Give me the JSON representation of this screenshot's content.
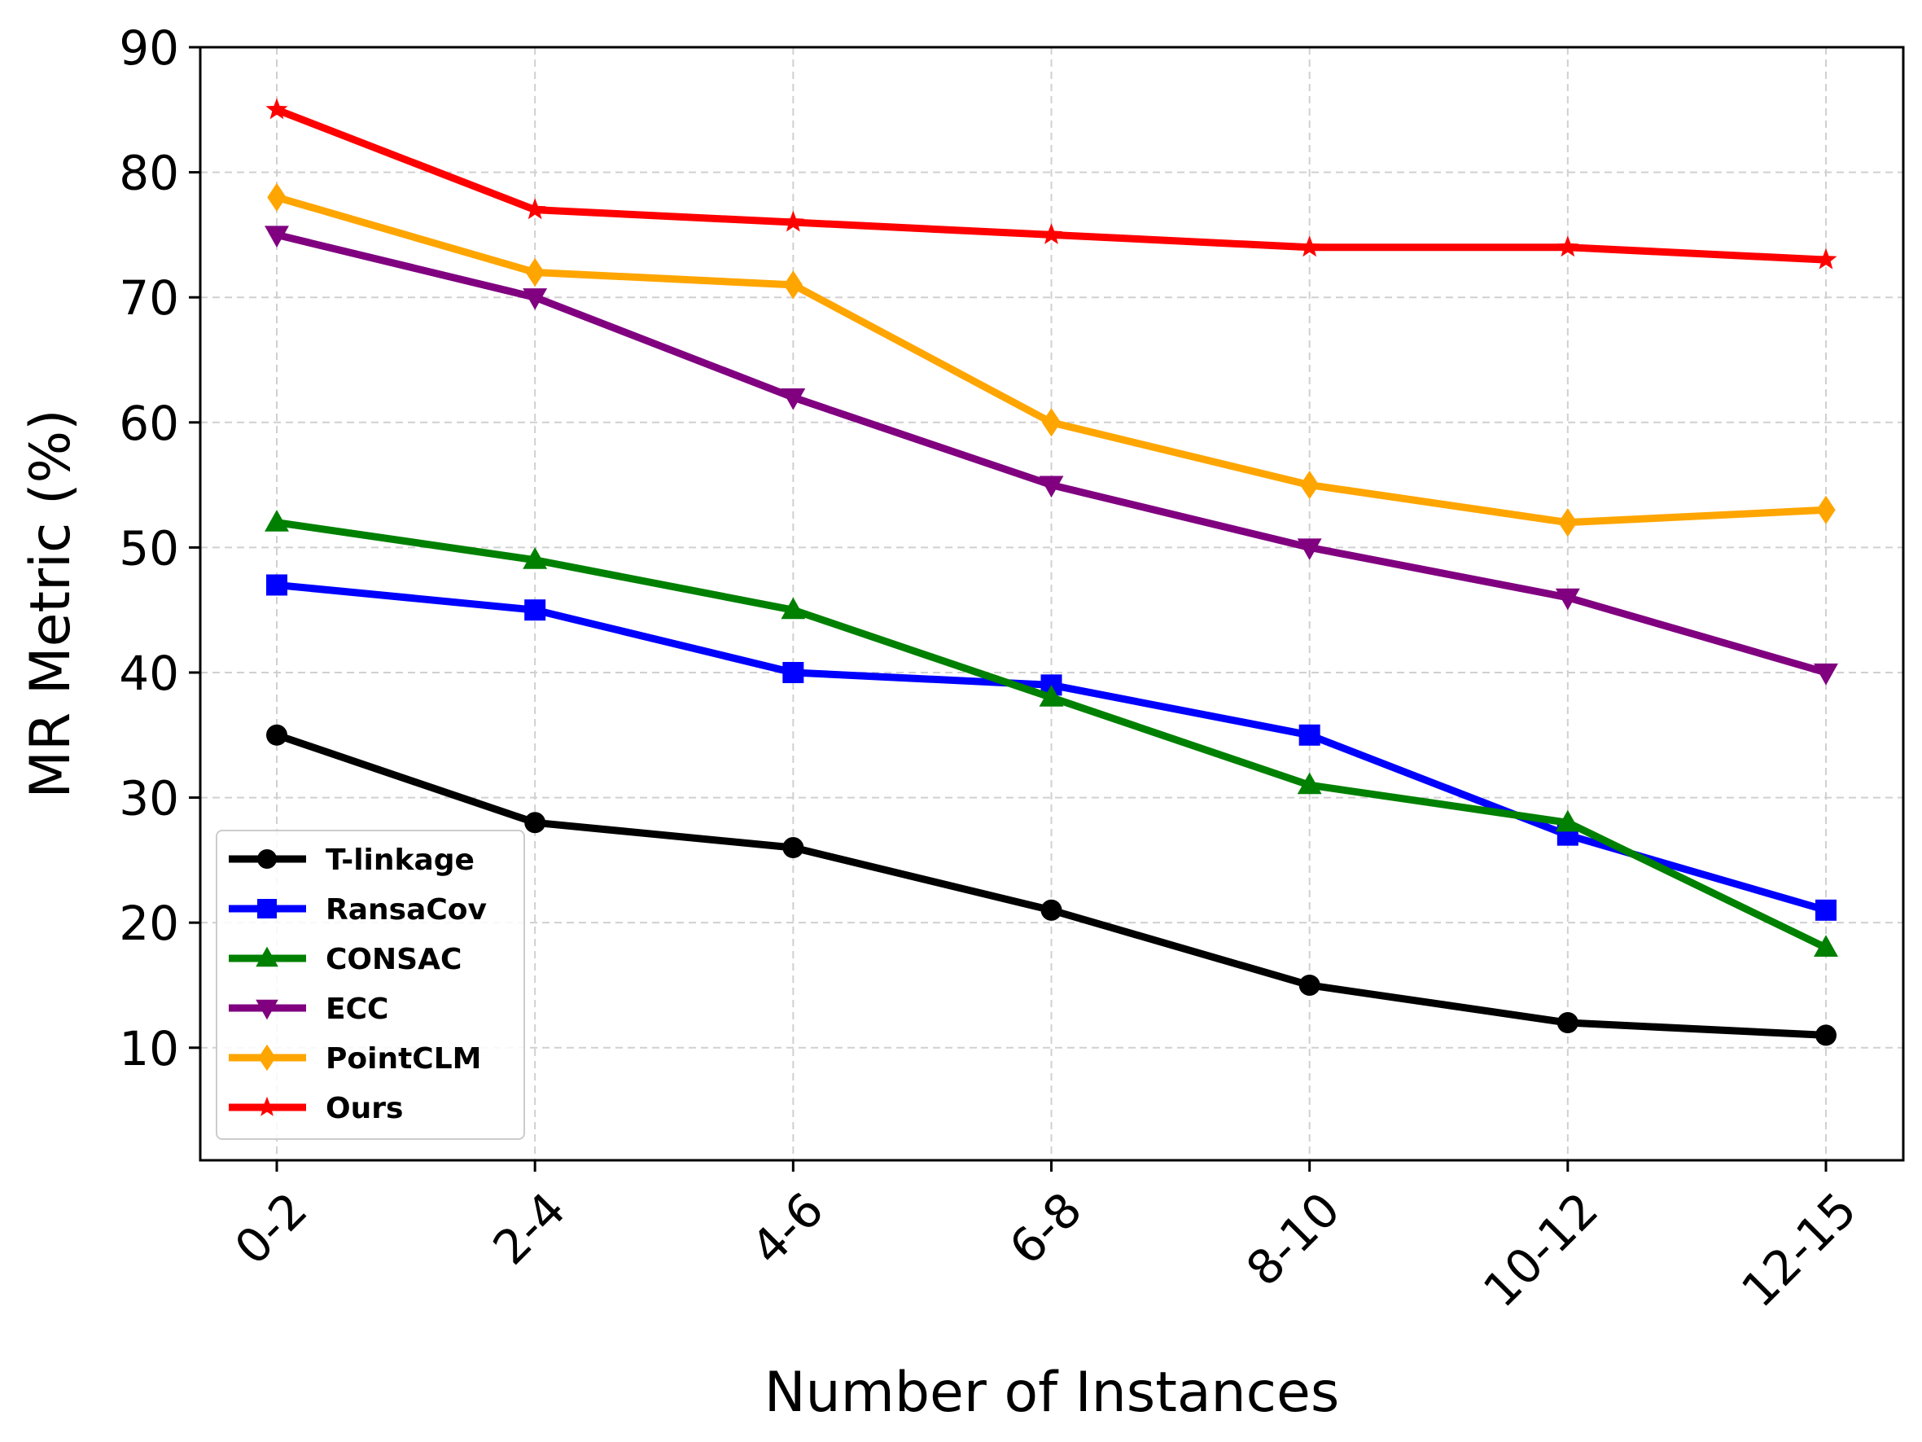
{
  "chart_data": {
    "type": "line",
    "title": "",
    "xlabel": "Number of Instances",
    "ylabel": "MR Metric (%)",
    "categories": [
      "0-2",
      "2-4",
      "4-6",
      "6-8",
      "8-10",
      "10-12",
      "12-15"
    ],
    "ylim": [
      1,
      90
    ],
    "yticks": [
      10,
      20,
      30,
      40,
      50,
      60,
      70,
      80,
      90
    ],
    "grid": true,
    "legend_position": "bottom-left",
    "series": [
      {
        "name": "T-linkage",
        "color": "#000000",
        "marker": "circle",
        "values": [
          35,
          28,
          26,
          21,
          15,
          12,
          11
        ]
      },
      {
        "name": "RansaCov",
        "color": "#0000ff",
        "marker": "square",
        "values": [
          47,
          45,
          40,
          39,
          35,
          27,
          21
        ]
      },
      {
        "name": "CONSAC",
        "color": "#008000",
        "marker": "triangle-up",
        "values": [
          52,
          49,
          45,
          38,
          31,
          28,
          18
        ]
      },
      {
        "name": "ECC",
        "color": "#800080",
        "marker": "triangle-down",
        "values": [
          75,
          70,
          62,
          55,
          50,
          46,
          40
        ]
      },
      {
        "name": "PointCLM",
        "color": "#ffa500",
        "marker": "diamond",
        "values": [
          78,
          72,
          71,
          60,
          55,
          52,
          53
        ]
      },
      {
        "name": "Ours",
        "color": "#ff0000",
        "marker": "star",
        "values": [
          85,
          77,
          76,
          75,
          74,
          74,
          73
        ]
      }
    ]
  }
}
